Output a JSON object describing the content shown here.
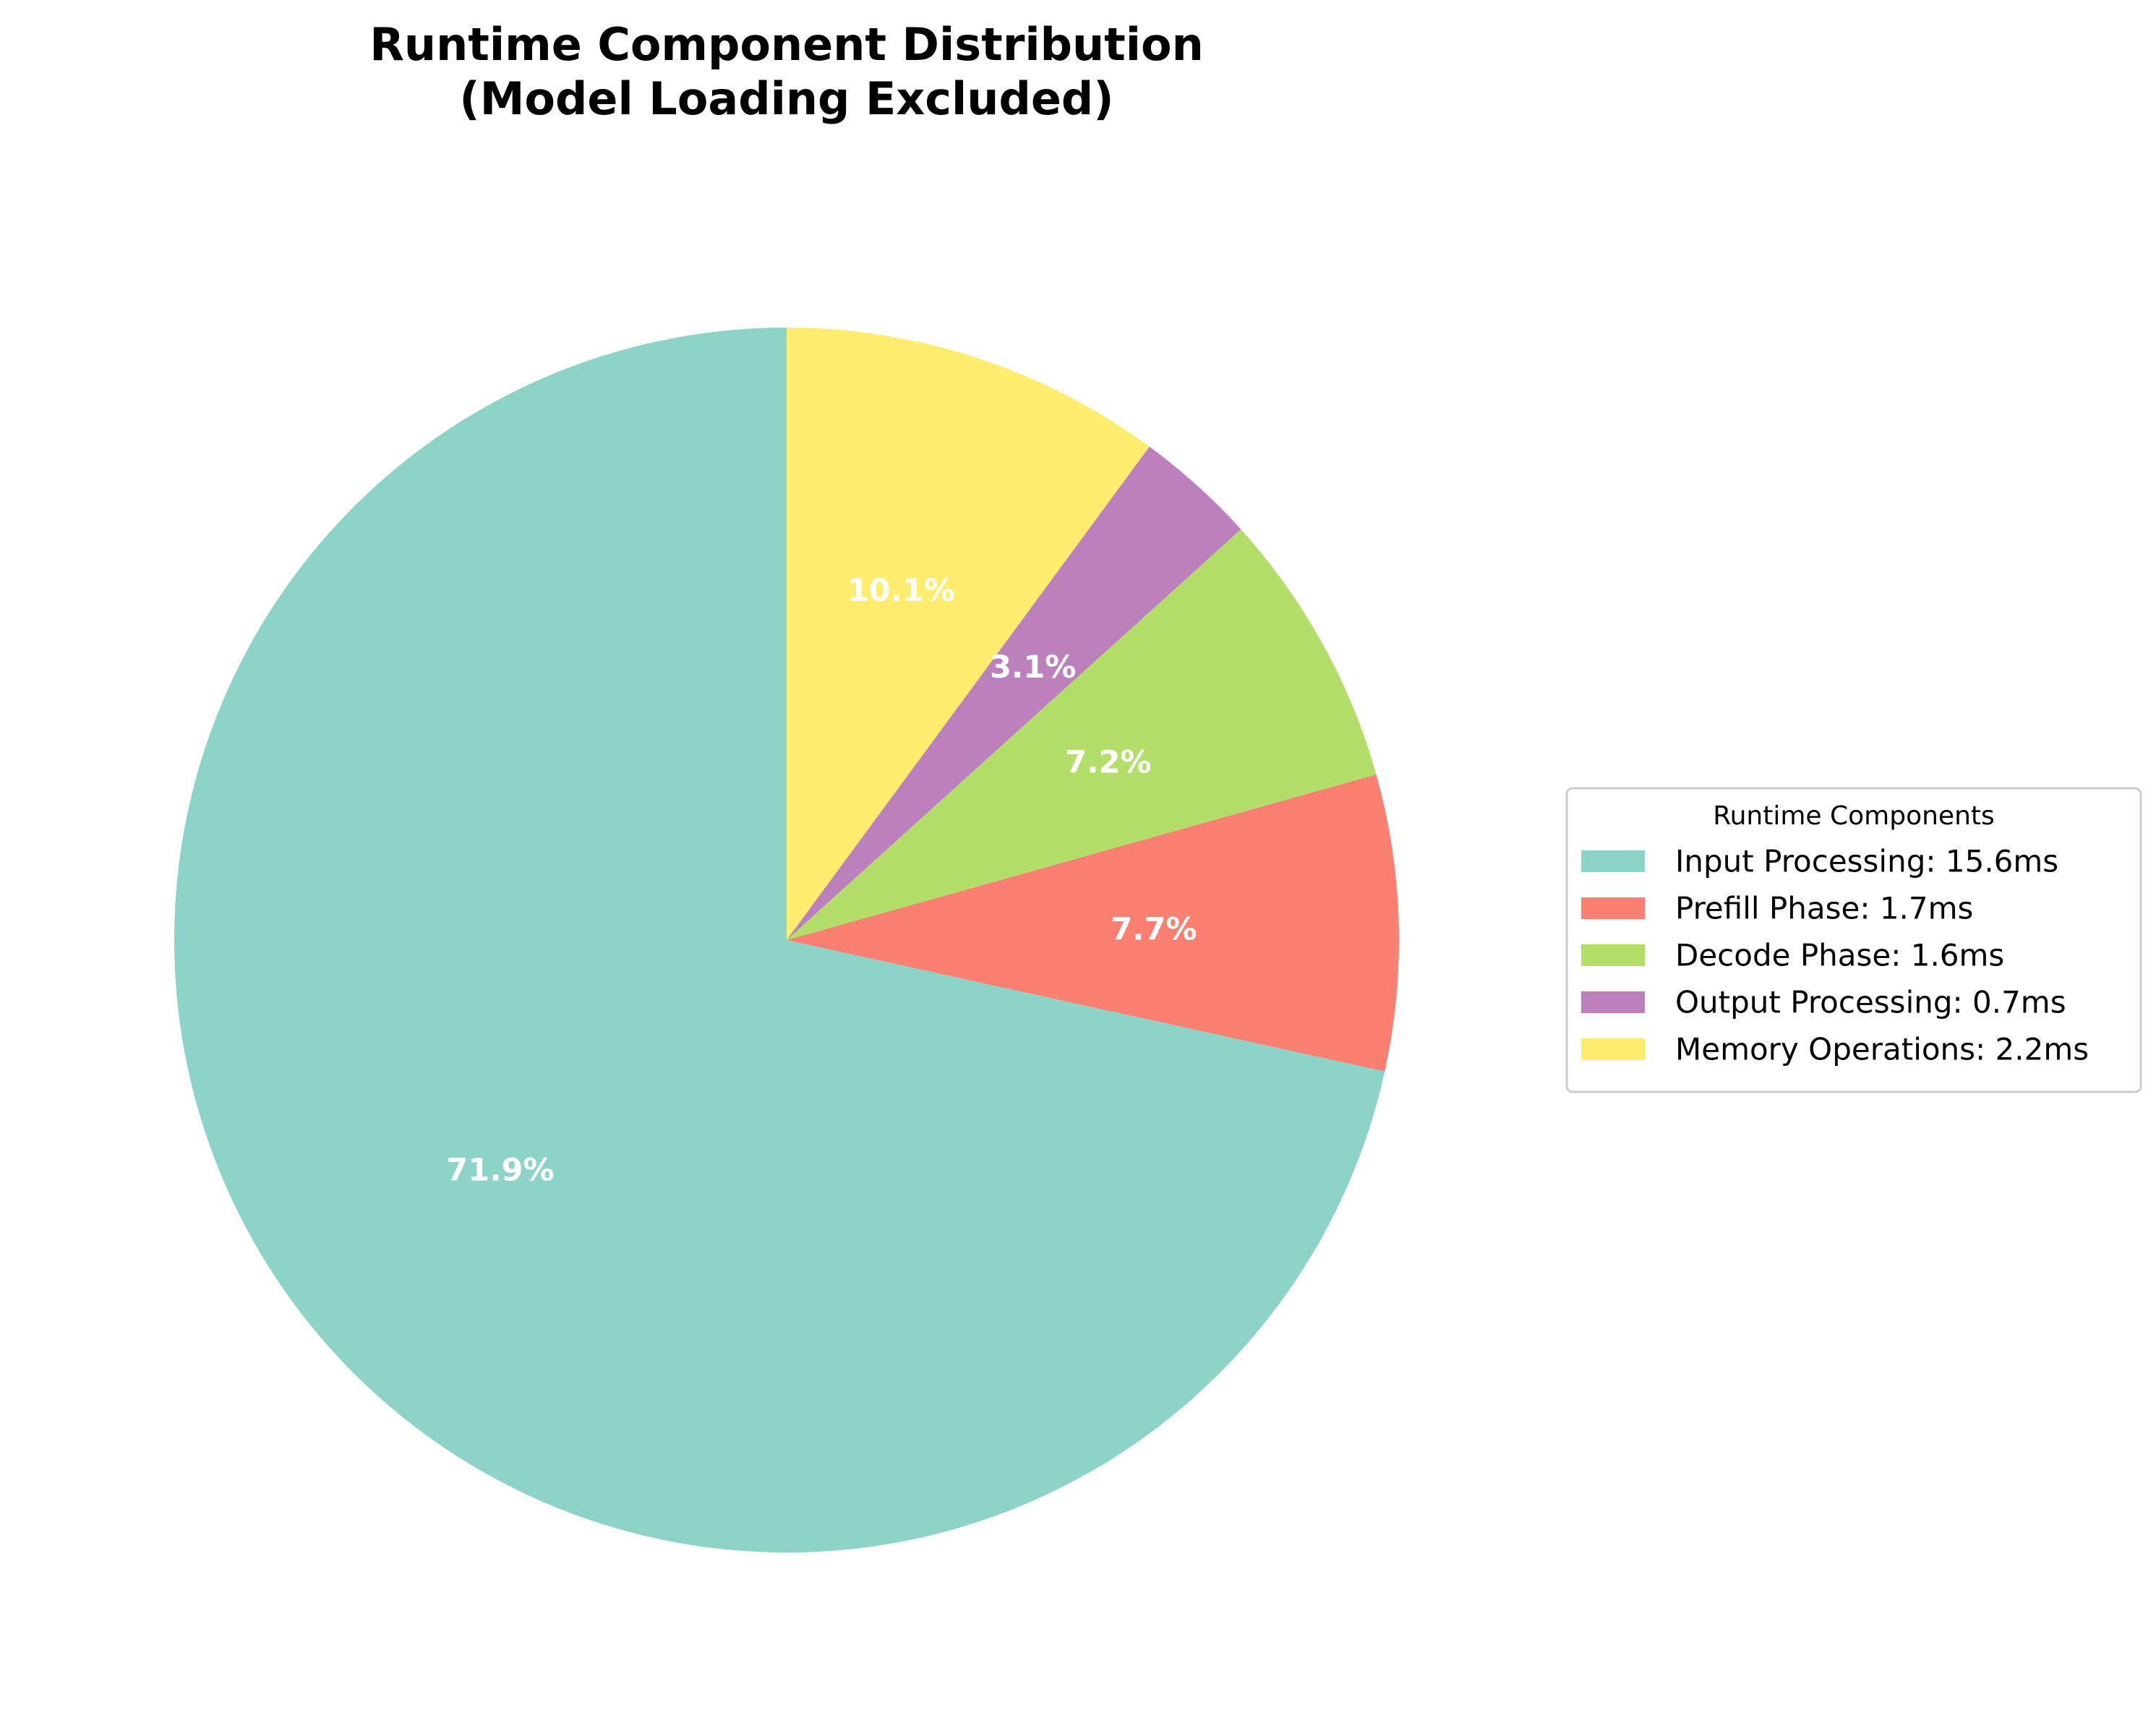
{
  "chart_data": {
    "type": "pie",
    "title": "Runtime Component Distribution\n(Model Loading Excluded)",
    "title_lines": [
      "Runtime Component Distribution",
      "(Model Loading Excluded)"
    ],
    "start_angle_deg": 90,
    "direction": "counterclockwise",
    "slices": [
      {
        "legend_label": "Input Processing: 15.6ms",
        "value_ms": 15.6,
        "percent": 71.9,
        "percent_label": "71.9%",
        "color": "#8dd3c7"
      },
      {
        "legend_label": "Prefill Phase: 1.7ms",
        "value_ms": 1.7,
        "percent": 7.7,
        "percent_label": "7.7%",
        "color": "#fb8072"
      },
      {
        "legend_label": "Decode Phase: 1.6ms",
        "value_ms": 1.6,
        "percent": 7.2,
        "percent_label": "7.2%",
        "color": "#b3de69"
      },
      {
        "legend_label": "Output Processing: 0.7ms",
        "value_ms": 0.7,
        "percent": 3.1,
        "percent_label": "3.1%",
        "color": "#bc80bd"
      },
      {
        "legend_label": "Memory Operations: 2.2ms",
        "value_ms": 2.2,
        "percent": 10.1,
        "percent_label": "10.1%",
        "color": "#ffed6f"
      }
    ],
    "legend": {
      "title": "Runtime Components",
      "placement": "center-right"
    }
  }
}
